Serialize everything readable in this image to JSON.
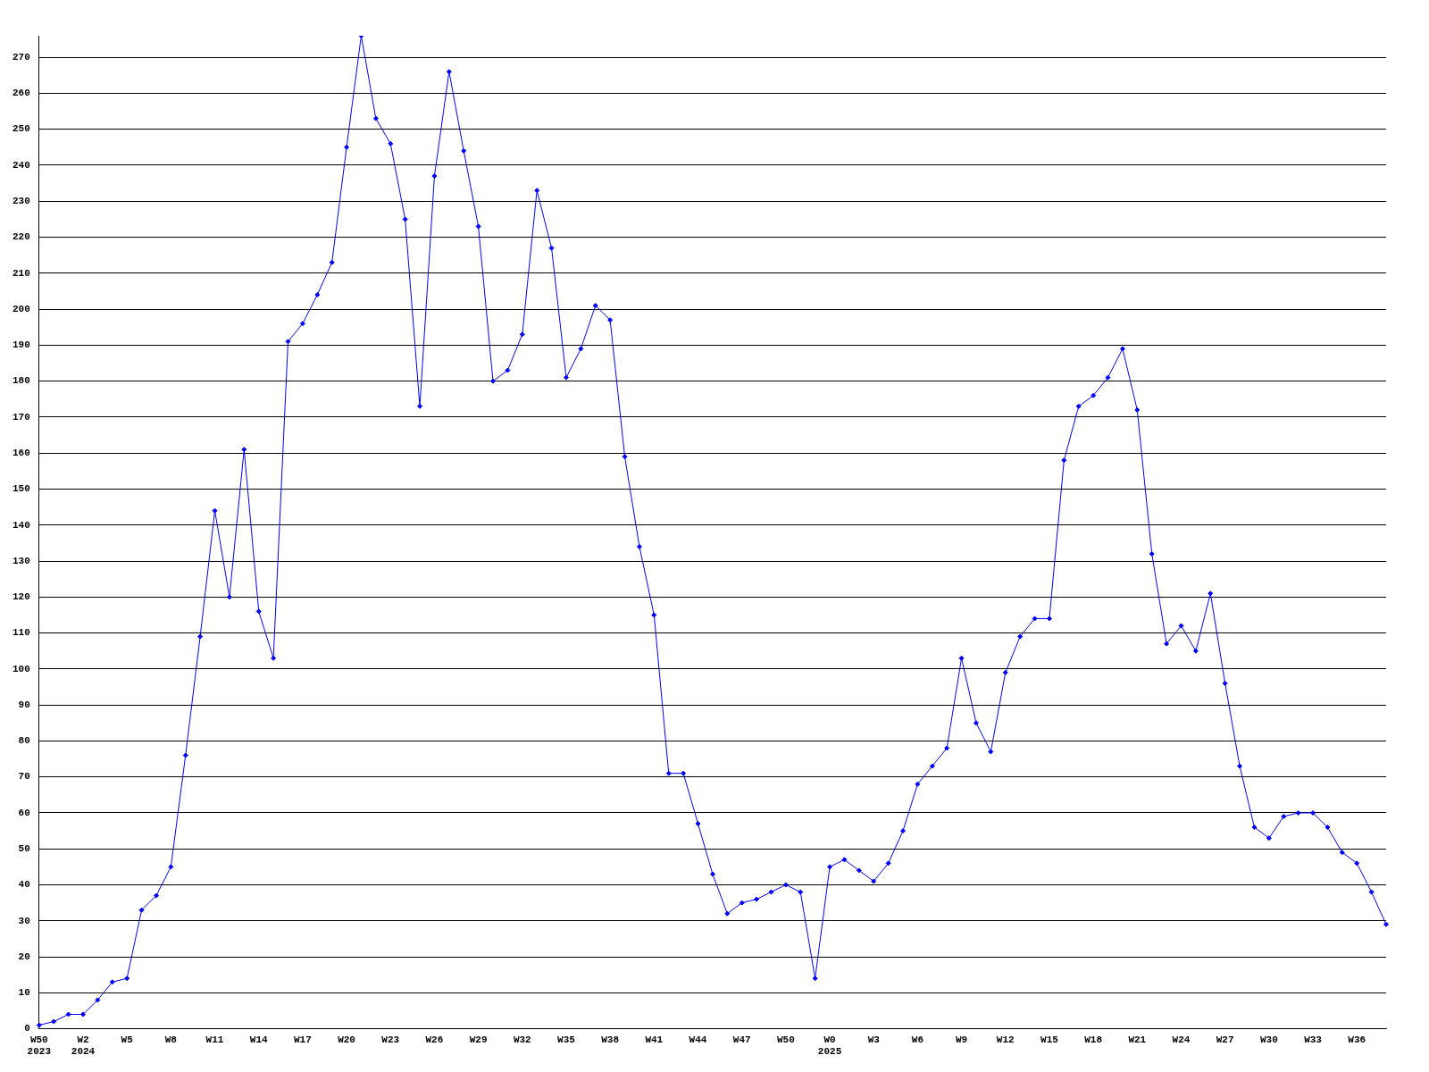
{
  "chart_data": {
    "type": "line",
    "categories": [
      "W50\n2023",
      null,
      null,
      "W2\n2024",
      null,
      null,
      "W5",
      null,
      null,
      "W8",
      null,
      null,
      "W11",
      null,
      null,
      "W14",
      null,
      null,
      "W17",
      null,
      null,
      "W20",
      null,
      null,
      "W23",
      null,
      null,
      "W26",
      null,
      null,
      "W29",
      null,
      null,
      "W32",
      null,
      null,
      "W35",
      null,
      null,
      "W38",
      null,
      null,
      "W41",
      null,
      null,
      "W44",
      null,
      null,
      "W47",
      null,
      null,
      "W50",
      null,
      null,
      "W0\n2025",
      null,
      null,
      "W3",
      null,
      null,
      "W6",
      null,
      null,
      "W9",
      null,
      null,
      "W12",
      null,
      null,
      "W15",
      null,
      null,
      "W18",
      null,
      null,
      "W21",
      null,
      null,
      "W24",
      null,
      null,
      "W27",
      null,
      null,
      "W30",
      null,
      null,
      "W33",
      null,
      null,
      "W36",
      null,
      null
    ],
    "series": [
      {
        "color": "#0000ff",
        "values": [
          1,
          2,
          4,
          4,
          8,
          13,
          14,
          33,
          37,
          45,
          76,
          109,
          144,
          120,
          161,
          116,
          103,
          191,
          196,
          204,
          213,
          245,
          276,
          253,
          246,
          225,
          173,
          237,
          266,
          244,
          223,
          180,
          183,
          193,
          233,
          217,
          181,
          189,
          201,
          197,
          159,
          134,
          115,
          71,
          71,
          57,
          43,
          32,
          35,
          36,
          38,
          40,
          38,
          14,
          45,
          47,
          44,
          41,
          46,
          55,
          68,
          73,
          78,
          103,
          85,
          77,
          99,
          109,
          114,
          114,
          158,
          173,
          176,
          181,
          189,
          172,
          132,
          107,
          112,
          105,
          121,
          96,
          73,
          56,
          53,
          59,
          60,
          60,
          56,
          49,
          46,
          38,
          29
        ]
      }
    ],
    "ylim": [
      0,
      276
    ],
    "yticks": [
      0,
      10,
      20,
      30,
      40,
      50,
      60,
      70,
      80,
      90,
      100,
      110,
      120,
      130,
      140,
      150,
      160,
      170,
      180,
      190,
      200,
      210,
      220,
      230,
      240,
      250,
      260,
      270
    ],
    "grid": "y",
    "marker": "diamond",
    "line_style": "solid",
    "legend": false
  }
}
